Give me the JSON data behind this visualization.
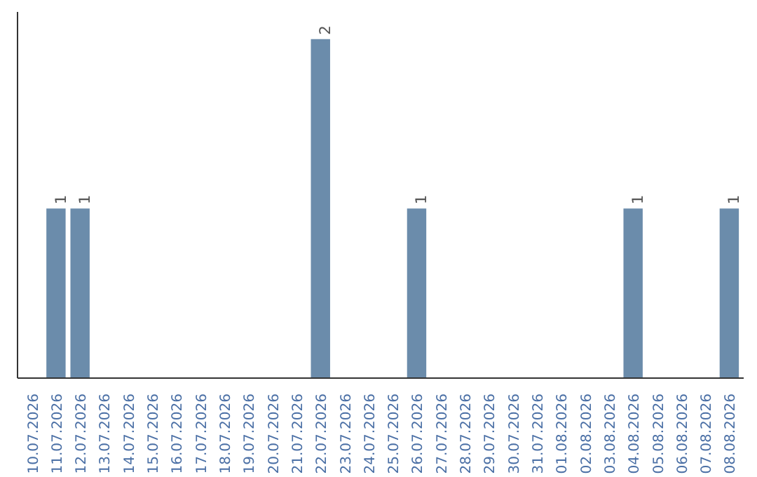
{
  "chart_data": {
    "type": "bar",
    "categories": [
      "10.07.2026",
      "11.07.2026",
      "12.07.2026",
      "13.07.2026",
      "14.07.2026",
      "15.07.2026",
      "16.07.2026",
      "17.07.2026",
      "18.07.2026",
      "19.07.2026",
      "20.07.2026",
      "21.07.2026",
      "22.07.2026",
      "23.07.2026",
      "24.07.2026",
      "25.07.2026",
      "26.07.2026",
      "27.07.2026",
      "28.07.2026",
      "29.07.2026",
      "30.07.2026",
      "31.07.2026",
      "01.08.2026",
      "02.08.2026",
      "03.08.2026",
      "04.08.2026",
      "05.08.2026",
      "06.08.2026",
      "07.08.2026",
      "08.08.2026"
    ],
    "values": [
      0,
      1,
      1,
      0,
      0,
      0,
      0,
      0,
      0,
      0,
      0,
      0,
      2,
      0,
      0,
      0,
      1,
      0,
      0,
      0,
      0,
      0,
      0,
      0,
      0,
      1,
      0,
      0,
      0,
      1
    ],
    "value_labels": [
      null,
      "1",
      "1",
      null,
      null,
      null,
      null,
      null,
      null,
      null,
      null,
      null,
      "2",
      null,
      null,
      null,
      "1",
      null,
      null,
      null,
      null,
      null,
      null,
      null,
      null,
      "1",
      null,
      null,
      null,
      "1"
    ],
    "color": "#6b8cab",
    "grid": false,
    "tick_labels": "x"
  }
}
